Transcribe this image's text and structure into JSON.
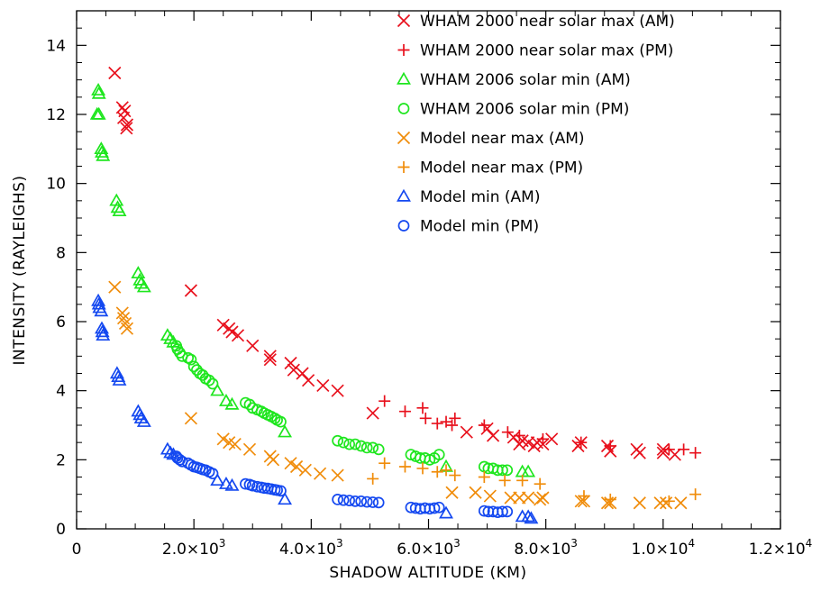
{
  "chart_data": {
    "type": "scatter",
    "title": "",
    "xlabel": "SHADOW ALTITUDE (KM)",
    "ylabel": "INTENSITY (RAYLEIGHS)",
    "xlim": [
      0,
      12000
    ],
    "ylim": [
      0,
      15
    ],
    "x_ticks": [
      0,
      2000,
      4000,
      6000,
      8000,
      10000,
      12000
    ],
    "x_tick_labels": [
      {
        "mantissa": "0",
        "exp": ""
      },
      {
        "mantissa": "2.0×10",
        "exp": "3"
      },
      {
        "mantissa": "4.0×10",
        "exp": "3"
      },
      {
        "mantissa": "6.0×10",
        "exp": "3"
      },
      {
        "mantissa": "8.0×10",
        "exp": "3"
      },
      {
        "mantissa": "1.0×10",
        "exp": "4"
      },
      {
        "mantissa": "1.2×10",
        "exp": "4"
      }
    ],
    "y_ticks": [
      0,
      2,
      4,
      6,
      8,
      10,
      12,
      14
    ],
    "y_tick_labels": [
      "0",
      "2",
      "4",
      "6",
      "8",
      "10",
      "12",
      "14"
    ],
    "legend_position": "top-right",
    "grid": false,
    "series": [
      {
        "name": "WHAM 2000 near solar max (AM)",
        "marker": "x",
        "color": "#e8101c",
        "points": [
          [
            650,
            13.2
          ],
          [
            780,
            12.2
          ],
          [
            820,
            12.1
          ],
          [
            800,
            11.9
          ],
          [
            860,
            11.7
          ],
          [
            850,
            11.6
          ],
          [
            1950,
            6.9
          ],
          [
            2500,
            5.9
          ],
          [
            2600,
            5.8
          ],
          [
            2650,
            5.7
          ],
          [
            2750,
            5.6
          ],
          [
            3000,
            5.3
          ],
          [
            3300,
            5.0
          ],
          [
            3300,
            4.9
          ],
          [
            3650,
            4.8
          ],
          [
            3700,
            4.6
          ],
          [
            3850,
            4.5
          ],
          [
            3950,
            4.3
          ],
          [
            4200,
            4.15
          ],
          [
            4450,
            4.0
          ],
          [
            5050,
            3.35
          ],
          [
            6650,
            2.8
          ],
          [
            7000,
            2.9
          ],
          [
            7100,
            2.7
          ],
          [
            7450,
            2.65
          ],
          [
            7550,
            2.45
          ],
          [
            7600,
            2.55
          ],
          [
            7700,
            2.5
          ],
          [
            7800,
            2.4
          ],
          [
            7850,
            2.5
          ],
          [
            7950,
            2.45
          ],
          [
            8100,
            2.6
          ],
          [
            8550,
            2.4
          ],
          [
            8600,
            2.5
          ],
          [
            9050,
            2.4
          ],
          [
            9100,
            2.25
          ],
          [
            9550,
            2.3
          ],
          [
            9600,
            2.2
          ],
          [
            10000,
            2.3
          ],
          [
            10000,
            2.2
          ],
          [
            10200,
            2.15
          ]
        ]
      },
      {
        "name": "WHAM 2000 near solar max (PM)",
        "marker": "+",
        "color": "#e8101c",
        "points": [
          [
            5250,
            3.7
          ],
          [
            5600,
            3.4
          ],
          [
            5900,
            3.5
          ],
          [
            5950,
            3.2
          ],
          [
            6150,
            3.05
          ],
          [
            6300,
            3.1
          ],
          [
            6400,
            3.0
          ],
          [
            6450,
            3.2
          ],
          [
            6950,
            3.0
          ],
          [
            7350,
            2.8
          ],
          [
            7550,
            2.7
          ],
          [
            7950,
            2.6
          ],
          [
            8600,
            2.5
          ],
          [
            9100,
            2.4
          ],
          [
            10100,
            2.3
          ],
          [
            10350,
            2.3
          ],
          [
            10550,
            2.2
          ]
        ]
      },
      {
        "name": "WHAM 2006 solar min (AM)",
        "marker": "triangle",
        "color": "#1ee61e",
        "points": [
          [
            370,
            12.7
          ],
          [
            380,
            12.6
          ],
          [
            350,
            12.0
          ],
          [
            380,
            12.0
          ],
          [
            420,
            11.0
          ],
          [
            430,
            10.9
          ],
          [
            450,
            10.8
          ],
          [
            680,
            9.5
          ],
          [
            700,
            9.3
          ],
          [
            730,
            9.2
          ],
          [
            1050,
            7.4
          ],
          [
            1080,
            7.2
          ],
          [
            1100,
            7.1
          ],
          [
            1150,
            7.0
          ],
          [
            1550,
            5.6
          ],
          [
            1600,
            5.5
          ],
          [
            1650,
            5.4
          ],
          [
            2400,
            4.0
          ],
          [
            2550,
            3.7
          ],
          [
            2650,
            3.6
          ],
          [
            3550,
            2.8
          ],
          [
            6300,
            1.8
          ],
          [
            7600,
            1.65
          ],
          [
            7700,
            1.65
          ]
        ]
      },
      {
        "name": "WHAM 2006 solar min (PM)",
        "marker": "circle",
        "color": "#1ee61e",
        "points": [
          [
            1700,
            5.3
          ],
          [
            1720,
            5.2
          ],
          [
            1760,
            5.1
          ],
          [
            1800,
            5.0
          ],
          [
            1900,
            4.95
          ],
          [
            1950,
            4.9
          ],
          [
            2000,
            4.7
          ],
          [
            2050,
            4.6
          ],
          [
            2100,
            4.5
          ],
          [
            2150,
            4.45
          ],
          [
            2200,
            4.35
          ],
          [
            2260,
            4.3
          ],
          [
            2320,
            4.2
          ],
          [
            2880,
            3.65
          ],
          [
            2950,
            3.6
          ],
          [
            3000,
            3.5
          ],
          [
            3080,
            3.45
          ],
          [
            3150,
            3.4
          ],
          [
            3200,
            3.35
          ],
          [
            3260,
            3.3
          ],
          [
            3320,
            3.25
          ],
          [
            3380,
            3.2
          ],
          [
            3420,
            3.15
          ],
          [
            3480,
            3.1
          ],
          [
            4450,
            2.55
          ],
          [
            4550,
            2.5
          ],
          [
            4650,
            2.45
          ],
          [
            4750,
            2.45
          ],
          [
            4850,
            2.4
          ],
          [
            4950,
            2.35
          ],
          [
            5050,
            2.35
          ],
          [
            5150,
            2.3
          ],
          [
            5700,
            2.15
          ],
          [
            5780,
            2.1
          ],
          [
            5860,
            2.05
          ],
          [
            5940,
            2.05
          ],
          [
            6020,
            2.0
          ],
          [
            6100,
            2.05
          ],
          [
            6180,
            2.15
          ],
          [
            6950,
            1.8
          ],
          [
            7020,
            1.75
          ],
          [
            7100,
            1.75
          ],
          [
            7180,
            1.7
          ],
          [
            7260,
            1.7
          ],
          [
            7340,
            1.7
          ]
        ]
      },
      {
        "name": "Model near max (AM)",
        "marker": "x",
        "color": "#f08c0a",
        "points": [
          [
            650,
            7.0
          ],
          [
            780,
            6.25
          ],
          [
            800,
            6.1
          ],
          [
            830,
            5.95
          ],
          [
            860,
            5.8
          ],
          [
            1950,
            3.2
          ],
          [
            2500,
            2.6
          ],
          [
            2600,
            2.5
          ],
          [
            2700,
            2.45
          ],
          [
            2950,
            2.3
          ],
          [
            3300,
            2.1
          ],
          [
            3350,
            2.0
          ],
          [
            3650,
            1.9
          ],
          [
            3750,
            1.8
          ],
          [
            3900,
            1.7
          ],
          [
            4150,
            1.6
          ],
          [
            4450,
            1.55
          ],
          [
            6400,
            1.05
          ],
          [
            6800,
            1.05
          ],
          [
            7050,
            0.95
          ],
          [
            7400,
            0.9
          ],
          [
            7550,
            0.9
          ],
          [
            7700,
            0.9
          ],
          [
            7900,
            0.85
          ],
          [
            7950,
            0.9
          ],
          [
            8600,
            0.8
          ],
          [
            8650,
            0.8
          ],
          [
            9050,
            0.75
          ],
          [
            9100,
            0.75
          ],
          [
            9600,
            0.75
          ],
          [
            9950,
            0.75
          ],
          [
            10050,
            0.75
          ],
          [
            10300,
            0.75
          ]
        ]
      },
      {
        "name": "Model near max (PM)",
        "marker": "+",
        "color": "#f08c0a",
        "points": [
          [
            5050,
            1.45
          ],
          [
            5250,
            1.9
          ],
          [
            5600,
            1.8
          ],
          [
            5900,
            1.75
          ],
          [
            6150,
            1.65
          ],
          [
            6300,
            1.7
          ],
          [
            6450,
            1.55
          ],
          [
            6950,
            1.5
          ],
          [
            7300,
            1.4
          ],
          [
            7600,
            1.4
          ],
          [
            7900,
            1.3
          ],
          [
            8650,
            0.95
          ],
          [
            9100,
            0.85
          ],
          [
            10100,
            0.8
          ],
          [
            10550,
            1.0
          ]
        ]
      },
      {
        "name": "Model min (AM)",
        "marker": "triangle",
        "color": "#1448f0",
        "points": [
          [
            370,
            6.6
          ],
          [
            380,
            6.5
          ],
          [
            390,
            6.4
          ],
          [
            420,
            6.3
          ],
          [
            430,
            5.8
          ],
          [
            440,
            5.7
          ],
          [
            450,
            5.6
          ],
          [
            690,
            4.5
          ],
          [
            710,
            4.4
          ],
          [
            730,
            4.3
          ],
          [
            1050,
            3.4
          ],
          [
            1080,
            3.3
          ],
          [
            1100,
            3.2
          ],
          [
            1150,
            3.1
          ],
          [
            1550,
            2.3
          ],
          [
            1600,
            2.2
          ],
          [
            1650,
            2.15
          ],
          [
            2400,
            1.4
          ],
          [
            2550,
            1.3
          ],
          [
            2650,
            1.25
          ],
          [
            3550,
            0.85
          ],
          [
            6300,
            0.45
          ],
          [
            7600,
            0.35
          ],
          [
            7700,
            0.35
          ],
          [
            7750,
            0.3
          ]
        ]
      },
      {
        "name": "Model min (PM)",
        "marker": "circle",
        "color": "#1448f0",
        "points": [
          [
            1700,
            2.1
          ],
          [
            1720,
            2.05
          ],
          [
            1760,
            2.0
          ],
          [
            1800,
            1.95
          ],
          [
            1900,
            1.9
          ],
          [
            1950,
            1.85
          ],
          [
            2000,
            1.8
          ],
          [
            2050,
            1.78
          ],
          [
            2100,
            1.75
          ],
          [
            2150,
            1.72
          ],
          [
            2200,
            1.7
          ],
          [
            2260,
            1.65
          ],
          [
            2320,
            1.6
          ],
          [
            2880,
            1.3
          ],
          [
            2950,
            1.28
          ],
          [
            3000,
            1.25
          ],
          [
            3080,
            1.22
          ],
          [
            3150,
            1.2
          ],
          [
            3200,
            1.18
          ],
          [
            3260,
            1.17
          ],
          [
            3320,
            1.15
          ],
          [
            3380,
            1.13
          ],
          [
            3420,
            1.12
          ],
          [
            3480,
            1.1
          ],
          [
            4450,
            0.85
          ],
          [
            4550,
            0.83
          ],
          [
            4650,
            0.82
          ],
          [
            4750,
            0.8
          ],
          [
            4850,
            0.8
          ],
          [
            4950,
            0.78
          ],
          [
            5050,
            0.77
          ],
          [
            5150,
            0.76
          ],
          [
            5700,
            0.62
          ],
          [
            5780,
            0.6
          ],
          [
            5860,
            0.58
          ],
          [
            5940,
            0.6
          ],
          [
            6020,
            0.58
          ],
          [
            6100,
            0.6
          ],
          [
            6180,
            0.62
          ],
          [
            6950,
            0.52
          ],
          [
            7020,
            0.5
          ],
          [
            7100,
            0.5
          ],
          [
            7180,
            0.48
          ],
          [
            7260,
            0.5
          ],
          [
            7340,
            0.5
          ]
        ]
      }
    ]
  }
}
